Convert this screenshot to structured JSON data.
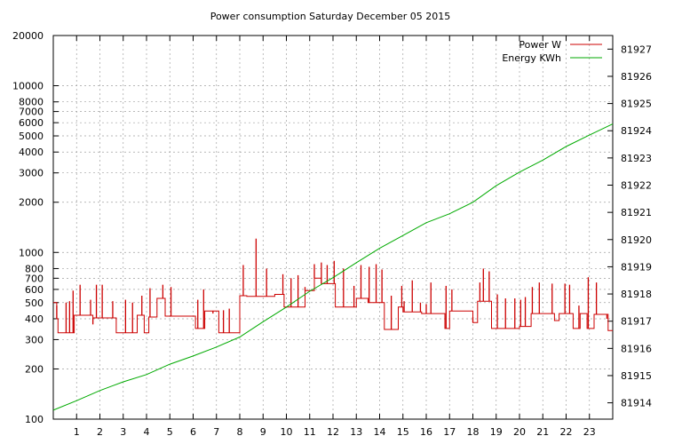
{
  "chart_data": {
    "type": "line",
    "title": "Power consumption Saturday December 05 2015",
    "xlabel": "",
    "ylabel": "",
    "y2label": "",
    "xlim": [
      0,
      24
    ],
    "x_ticks": [
      1,
      2,
      3,
      4,
      5,
      6,
      7,
      8,
      9,
      10,
      11,
      12,
      13,
      14,
      15,
      16,
      17,
      18,
      19,
      20,
      21,
      22,
      23
    ],
    "ylim": [
      100,
      20000
    ],
    "yscale": "log",
    "y_ticks": [
      {
        "v": 100,
        "label": "100"
      },
      {
        "v": 200,
        "label": "200"
      },
      {
        "v": 300,
        "label": "300"
      },
      {
        "v": 400,
        "label": "400"
      },
      {
        "v": 500,
        "label": "500"
      },
      {
        "v": 600,
        "label": "600"
      },
      {
        "v": 700,
        "label": "700"
      },
      {
        "v": 800,
        "label": "800"
      },
      {
        "v": 1000,
        "label": "1000"
      },
      {
        "v": 2000,
        "label": "2000"
      },
      {
        "v": 3000,
        "label": "3000"
      },
      {
        "v": 4000,
        "label": "4000"
      },
      {
        "v": 5000,
        "label": "5000"
      },
      {
        "v": 6000,
        "label": "6000"
      },
      {
        "v": 7000,
        "label": "7000"
      },
      {
        "v": 8000,
        "label": "8000"
      },
      {
        "v": 10000,
        "label": "10000"
      },
      {
        "v": 20000,
        "label": "20000"
      }
    ],
    "y2lim": [
      81913.4,
      81927.5
    ],
    "y2_ticks": [
      81914,
      81915,
      81916,
      81917,
      81918,
      81919,
      81920,
      81921,
      81922,
      81923,
      81924,
      81925,
      81926,
      81927
    ],
    "grid": true,
    "legend_position": "top-right",
    "series": [
      {
        "name": "Power W",
        "axis": "y",
        "color": "#cc0000",
        "base": [
          [
            0,
            500
          ],
          [
            0.15,
            400
          ],
          [
            0.2,
            330
          ],
          [
            0.9,
            420
          ],
          [
            1.7,
            405
          ],
          [
            2.7,
            330
          ],
          [
            3.6,
            420
          ],
          [
            3.9,
            330
          ],
          [
            4.1,
            410
          ],
          [
            4.45,
            530
          ],
          [
            4.8,
            415
          ],
          [
            6.1,
            350
          ],
          [
            6.5,
            445
          ],
          [
            7.1,
            330
          ],
          [
            8.0,
            550
          ],
          [
            8.3,
            545
          ],
          [
            9.5,
            560
          ],
          [
            9.9,
            470
          ],
          [
            10.8,
            590
          ],
          [
            11.2,
            700
          ],
          [
            11.5,
            650
          ],
          [
            12.1,
            470
          ],
          [
            13.0,
            530
          ],
          [
            13.5,
            500
          ],
          [
            14.2,
            345
          ],
          [
            14.8,
            470
          ],
          [
            15.0,
            440
          ],
          [
            15.8,
            430
          ],
          [
            16.8,
            350
          ],
          [
            17.0,
            445
          ],
          [
            18.0,
            380
          ],
          [
            18.2,
            510
          ],
          [
            18.8,
            350
          ],
          [
            20.0,
            360
          ],
          [
            20.5,
            430
          ],
          [
            21.5,
            390
          ],
          [
            21.7,
            430
          ],
          [
            22.3,
            350
          ],
          [
            22.6,
            430
          ],
          [
            22.9,
            350
          ],
          [
            23.2,
            425
          ],
          [
            23.8,
            340
          ],
          [
            24,
            340
          ]
        ],
        "spikes": [
          [
            0.15,
            480
          ],
          [
            0.55,
            500
          ],
          [
            0.7,
            510
          ],
          [
            0.85,
            590
          ],
          [
            1.15,
            640
          ],
          [
            1.6,
            520
          ],
          [
            1.7,
            370
          ],
          [
            1.85,
            640
          ],
          [
            2.1,
            640
          ],
          [
            2.55,
            510
          ],
          [
            3.1,
            520
          ],
          [
            3.4,
            500
          ],
          [
            3.8,
            550
          ],
          [
            4.15,
            610
          ],
          [
            4.7,
            640
          ],
          [
            5.05,
            620
          ],
          [
            6.2,
            520
          ],
          [
            6.45,
            600
          ],
          [
            6.85,
            430
          ],
          [
            7.3,
            450
          ],
          [
            7.55,
            460
          ],
          [
            8.15,
            840
          ],
          [
            8.7,
            1210
          ],
          [
            9.15,
            800
          ],
          [
            9.85,
            740
          ],
          [
            10.2,
            700
          ],
          [
            10.5,
            730
          ],
          [
            10.8,
            620
          ],
          [
            11.2,
            850
          ],
          [
            11.5,
            870
          ],
          [
            11.75,
            840
          ],
          [
            12.05,
            890
          ],
          [
            12.45,
            800
          ],
          [
            12.9,
            630
          ],
          [
            13.2,
            840
          ],
          [
            13.55,
            820
          ],
          [
            13.85,
            850
          ],
          [
            14.1,
            790
          ],
          [
            14.5,
            550
          ],
          [
            14.95,
            630
          ],
          [
            15.05,
            510
          ],
          [
            15.4,
            680
          ],
          [
            15.75,
            500
          ],
          [
            16.0,
            490
          ],
          [
            16.2,
            660
          ],
          [
            16.85,
            630
          ],
          [
            17.1,
            600
          ],
          [
            18.0,
            410
          ],
          [
            18.3,
            660
          ],
          [
            18.45,
            800
          ],
          [
            18.7,
            770
          ],
          [
            19.05,
            560
          ],
          [
            19.4,
            530
          ],
          [
            19.8,
            530
          ],
          [
            20.05,
            520
          ],
          [
            20.25,
            540
          ],
          [
            20.55,
            620
          ],
          [
            20.85,
            660
          ],
          [
            21.4,
            650
          ],
          [
            21.95,
            650
          ],
          [
            22.15,
            640
          ],
          [
            22.55,
            480
          ],
          [
            22.95,
            710
          ],
          [
            23.3,
            660
          ],
          [
            23.75,
            400
          ]
        ]
      },
      {
        "name": "Energy KWh",
        "axis": "y2",
        "color": "#00aa00",
        "points": [
          [
            0,
            81913.73
          ],
          [
            1,
            81914.08
          ],
          [
            2,
            81914.45
          ],
          [
            3,
            81914.77
          ],
          [
            4,
            81915.04
          ],
          [
            5,
            81915.42
          ],
          [
            6,
            81915.72
          ],
          [
            7,
            81916.05
          ],
          [
            8,
            81916.42
          ],
          [
            9,
            81916.98
          ],
          [
            10,
            81917.52
          ],
          [
            11,
            81918.1
          ],
          [
            12,
            81918.6
          ],
          [
            13,
            81919.15
          ],
          [
            14,
            81919.68
          ],
          [
            15,
            81920.15
          ],
          [
            16,
            81920.62
          ],
          [
            17,
            81920.95
          ],
          [
            18,
            81921.37
          ],
          [
            19,
            81921.98
          ],
          [
            20,
            81922.48
          ],
          [
            21,
            81922.92
          ],
          [
            22,
            81923.42
          ],
          [
            23,
            81923.84
          ],
          [
            24,
            81924.25
          ]
        ]
      }
    ]
  }
}
